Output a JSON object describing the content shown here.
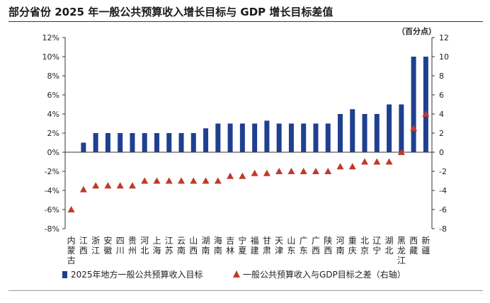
{
  "title": "部分省份 2025 年一般公共预算收入增长目标与 GDP 增长目标差值",
  "chart_data": {
    "type": "bar",
    "title": "部分省份 2025 年一般公共预算收入增长目标与 GDP 增长目标差值",
    "categories": [
      "内蒙古",
      "江西",
      "浙江",
      "安徽",
      "四川",
      "贵州",
      "河北",
      "上海",
      "江苏",
      "云南",
      "山西",
      "湖南",
      "海南",
      "吉林",
      "宁夏",
      "福建",
      "甘肃",
      "天津",
      "山东",
      "广东",
      "广西",
      "陕西",
      "河南",
      "重庆",
      "北京",
      "辽宁",
      "湖北",
      "黑龙江",
      "西藏",
      "新疆"
    ],
    "series": [
      {
        "name": "2025年地方一般公共预算收入目标",
        "type": "bar",
        "axis": "left",
        "color": "#1f3f8f",
        "values": [
          0,
          1,
          2,
          2,
          2,
          2,
          2,
          2,
          2,
          2,
          2,
          2.5,
          3,
          3,
          3,
          3,
          3.3,
          3,
          3,
          3,
          3,
          3,
          4,
          4.5,
          4,
          4,
          5,
          5,
          10,
          10
        ]
      },
      {
        "name": "一般公共预算收入与GDP目标之差（右轴）",
        "type": "scatter",
        "axis": "right",
        "marker": "triangle",
        "color": "#c0392b",
        "values": [
          -6,
          -3.9,
          -3.5,
          -3.5,
          -3.5,
          -3.5,
          -3,
          -3,
          -3,
          -3,
          -3,
          -3,
          -3,
          -2.5,
          -2.5,
          -2.2,
          -2.2,
          -2,
          -2,
          -2,
          -2,
          -2,
          -1.5,
          -1.5,
          -1,
          -1,
          -1,
          0,
          2.5,
          4
        ]
      }
    ],
    "y_left": {
      "ticks": [
        "12%",
        "10%",
        "8%",
        "6%",
        "4%",
        "2%",
        "0%",
        "-2%",
        "-4%",
        "-6%",
        "-8%"
      ],
      "ylim": [
        -8,
        12
      ]
    },
    "y_right": {
      "label": "（百分点）",
      "ticks": [
        "12",
        "10",
        "8",
        "6",
        "4",
        "2",
        "0",
        "-2",
        "-4",
        "-6",
        "-8"
      ],
      "ylim": [
        -8,
        12
      ]
    },
    "legend": {
      "position": "bottom"
    }
  }
}
